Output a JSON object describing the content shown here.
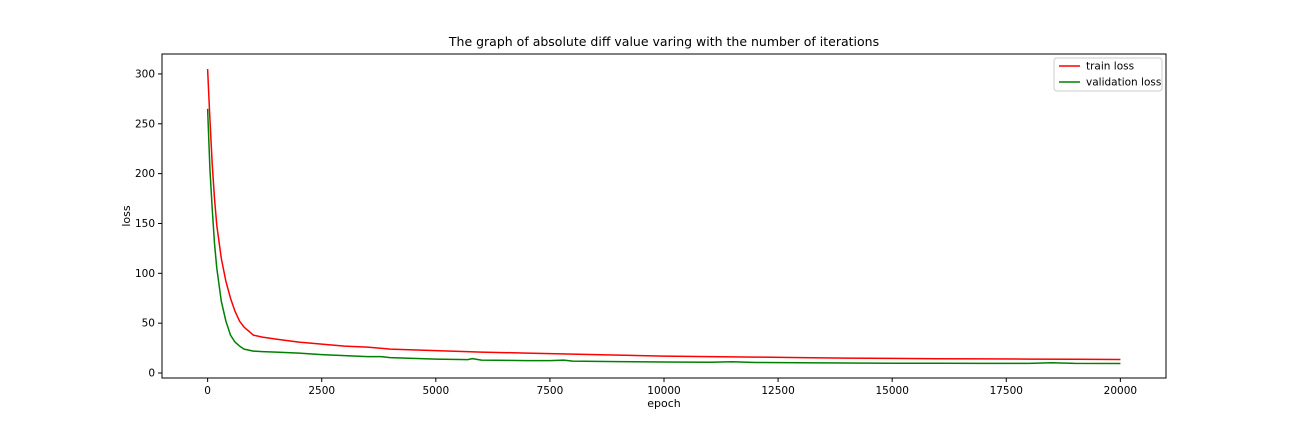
{
  "chart_data": {
    "type": "line",
    "title": "The graph of absolute diff value varing with the number of iterations",
    "xlabel": "epoch",
    "ylabel": "loss",
    "xlim": [
      -1000,
      21000
    ],
    "ylim": [
      -5,
      320
    ],
    "xticks": [
      0,
      2500,
      5000,
      7500,
      10000,
      12500,
      15000,
      17500,
      20000
    ],
    "yticks": [
      0,
      50,
      100,
      150,
      200,
      250,
      300
    ],
    "grid": false,
    "legend_position": "top-right",
    "series": [
      {
        "name": "train loss",
        "color": "#ff0000",
        "x": [
          0,
          50,
          100,
          150,
          200,
          300,
          400,
          500,
          600,
          700,
          800,
          900,
          1000,
          1200,
          1500,
          2000,
          2500,
          3000,
          3500,
          4000,
          5000,
          6000,
          7000,
          8000,
          9000,
          10000,
          11000,
          12000,
          13000,
          14000,
          15000,
          16000,
          17000,
          18000,
          19000,
          20000
        ],
        "y": [
          305,
          255,
          210,
          175,
          148,
          115,
          92,
          75,
          62,
          52,
          46,
          42,
          38,
          36,
          34,
          31,
          29,
          27,
          26,
          24,
          22.5,
          21,
          20,
          19,
          18,
          17,
          16.5,
          16,
          15.5,
          15,
          14.7,
          14.4,
          14.2,
          14,
          13.8,
          13.6
        ]
      },
      {
        "name": "validation loss",
        "color": "#008000",
        "x": [
          0,
          50,
          100,
          150,
          200,
          300,
          400,
          500,
          600,
          700,
          800,
          900,
          1000,
          1200,
          1500,
          2000,
          2500,
          3000,
          3500,
          3800,
          4000,
          5000,
          5700,
          5800,
          6000,
          7000,
          7500,
          7800,
          8000,
          9000,
          10000,
          11000,
          11500,
          12000,
          13000,
          14000,
          15000,
          16000,
          17000,
          18000,
          18500,
          19000,
          20000
        ],
        "y": [
          265,
          205,
          165,
          130,
          105,
          72,
          52,
          38,
          31,
          27,
          24,
          23,
          22,
          21.5,
          21,
          20,
          18.5,
          17.5,
          16.5,
          16.5,
          15.5,
          14,
          13.5,
          14.5,
          13,
          12.5,
          12.5,
          13,
          12,
          11.5,
          11,
          10.8,
          11.2,
          10.5,
          10.2,
          10,
          9.8,
          9.7,
          9.6,
          9.6,
          10.3,
          9.6,
          9.5
        ]
      }
    ]
  }
}
